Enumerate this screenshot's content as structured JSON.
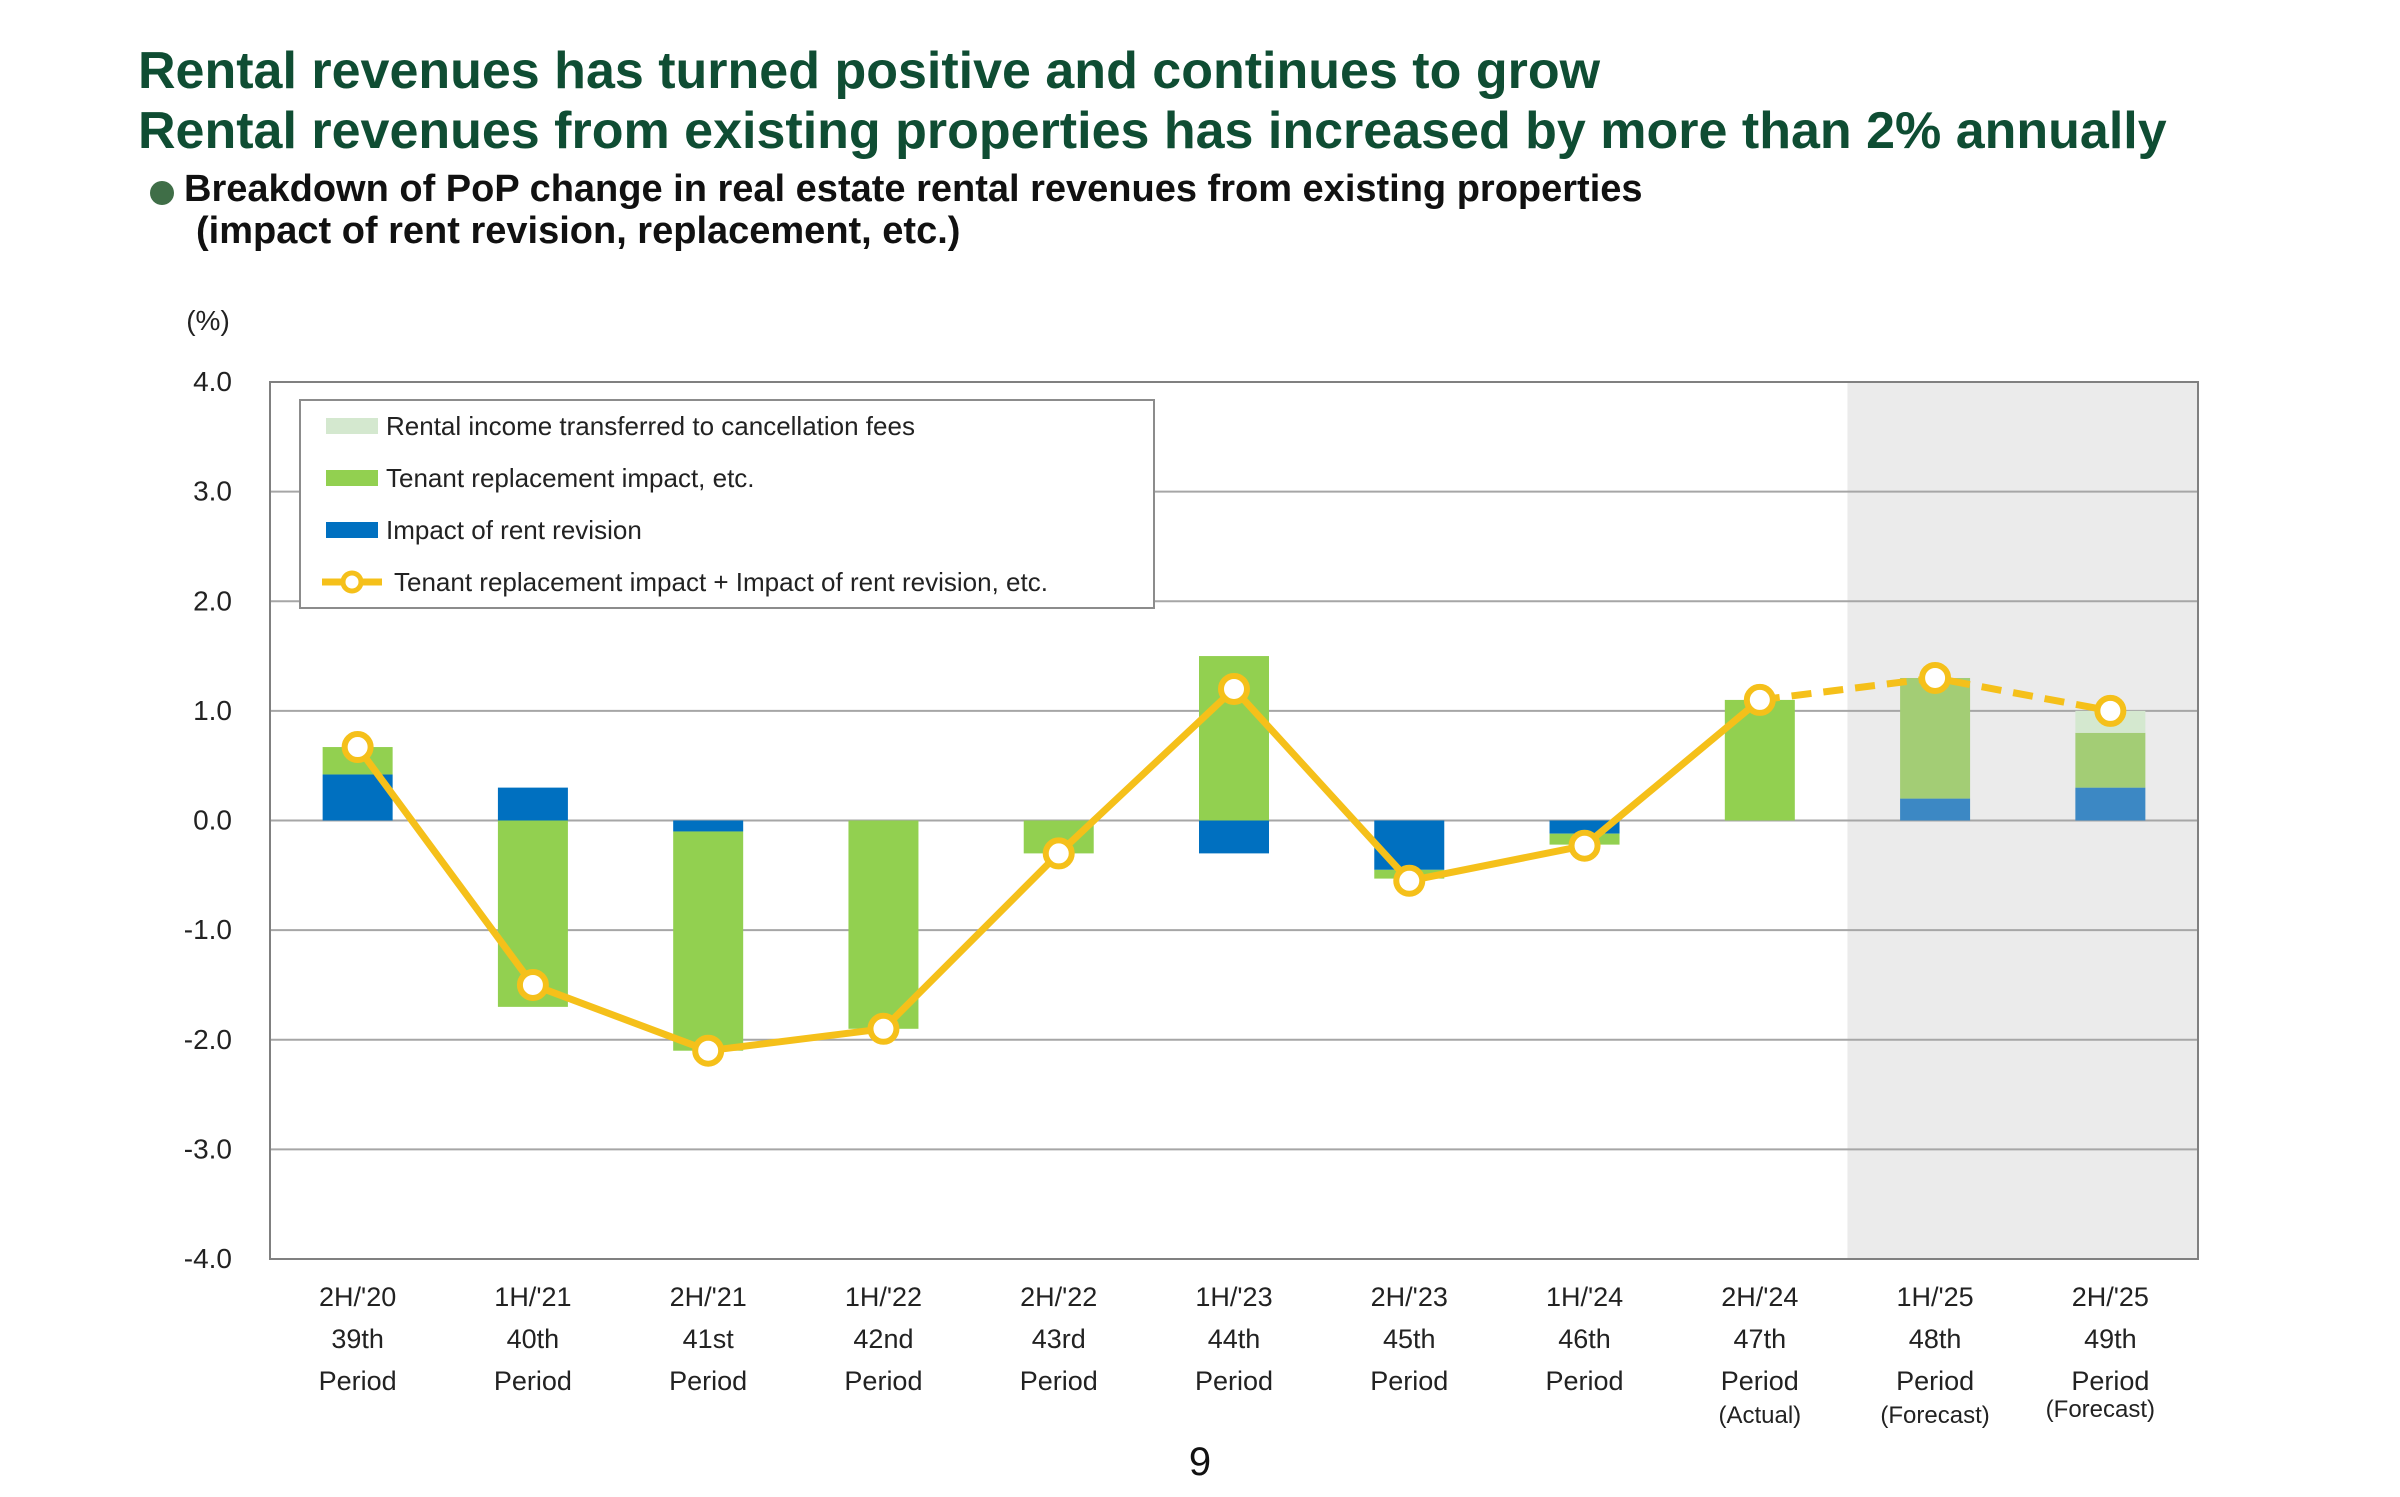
{
  "title_line1": "Rental revenues has turned positive and continues to grow",
  "title_line2": "Rental revenues from existing properties has increased by more than 2% annually",
  "subtitle_line1": "Breakdown of PoP change in real estate rental revenues from existing properties",
  "subtitle_line2": "(impact of rent revision, replacement, etc.)",
  "page_number": "9",
  "colors": {
    "heading": "#0f4d33",
    "cancellation": "#d4e8cf",
    "replacement": "#92d050",
    "replacement_forecast": "#a3cd75",
    "rent_revision": "#0070c0",
    "rent_revision_forecast": "#3c88c4",
    "line": "#f5c01a",
    "forecast_shade": "#ebebeb"
  },
  "chart_data": {
    "type": "bar",
    "stacked": true,
    "unit_label": "(%)",
    "ylim": [
      -4.0,
      4.0
    ],
    "yticks": [
      "4.0",
      "3.0",
      "2.0",
      "1.0",
      "0.0",
      "-1.0",
      "-2.0",
      "-3.0",
      "-4.0"
    ],
    "grid": true,
    "legend_position": "top-left",
    "categories": [
      [
        "2H/'20",
        "39th",
        "Period"
      ],
      [
        "1H/'21",
        "40th",
        "Period"
      ],
      [
        "2H/'21",
        "41st",
        "Period"
      ],
      [
        "1H/'22",
        "42nd",
        "Period"
      ],
      [
        "2H/'22",
        "43rd",
        "Period"
      ],
      [
        "1H/'23",
        "44th",
        "Period"
      ],
      [
        "2H/'23",
        "45th",
        "Period"
      ],
      [
        "1H/'24",
        "46th",
        "Period"
      ],
      [
        "2H/'24",
        "47th",
        "Period",
        "(Actual)"
      ],
      [
        "1H/'25",
        "48th",
        "Period",
        "(Forecast)"
      ],
      [
        "2H/'25",
        "49th",
        "Period",
        "(Forecast)"
      ]
    ],
    "forecast_from_index": 9,
    "series": [
      {
        "name": "Rental income transferred to cancellation fees",
        "kind": "bar",
        "values": [
          0,
          0,
          0,
          0,
          0,
          0,
          0,
          0,
          0,
          0,
          0.2
        ]
      },
      {
        "name": "Tenant replacement impact, etc.",
        "kind": "bar",
        "values": [
          0.25,
          -1.7,
          -2.0,
          -1.9,
          -0.3,
          1.5,
          -0.08,
          -0.1,
          1.1,
          1.1,
          0.5
        ]
      },
      {
        "name": "Impact of rent revision",
        "kind": "bar",
        "values": [
          0.42,
          0.3,
          -0.1,
          0,
          0,
          -0.3,
          -0.45,
          -0.12,
          0,
          0.2,
          0.3
        ]
      },
      {
        "name": "Tenant replacement impact +   Impact of rent revision, etc.",
        "kind": "line",
        "values": [
          0.67,
          -1.5,
          -2.1,
          -1.9,
          -0.3,
          1.2,
          -0.55,
          -0.23,
          1.1,
          1.3,
          1.0
        ]
      }
    ]
  }
}
